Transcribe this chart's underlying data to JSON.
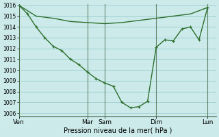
{
  "background_color": "#cceaea",
  "grid_color": "#99cccc",
  "line_color": "#2a6e2a",
  "xlabel": "Pression niveau de la mer( hPa )",
  "ylim": [
    1006,
    1016
  ],
  "yticks": [
    1006,
    1007,
    1008,
    1009,
    1010,
    1011,
    1012,
    1013,
    1014,
    1015,
    1016
  ],
  "day_labels": [
    "Ven",
    "Mar",
    "Sam",
    "Dim",
    "Lun"
  ],
  "day_positions_x": [
    0.0,
    8.0,
    10.0,
    16.0,
    22.0
  ],
  "xlim": [
    0,
    23
  ],
  "vlines": [
    0.0,
    8.0,
    10.0,
    16.0,
    22.0
  ],
  "smooth_x": [
    0,
    2,
    4,
    6,
    8,
    10,
    12,
    14,
    16,
    18,
    20,
    22
  ],
  "smooth_y": [
    1016.0,
    1015.0,
    1014.8,
    1014.5,
    1014.4,
    1014.3,
    1014.4,
    1014.6,
    1014.8,
    1015.0,
    1015.2,
    1015.8
  ],
  "detail_x": [
    0,
    1,
    2,
    3,
    4,
    5,
    6,
    7,
    8,
    9,
    10,
    11,
    12,
    13,
    14,
    15,
    16,
    17,
    18,
    19,
    20,
    21,
    22
  ],
  "detail_y": [
    1016.0,
    1015.2,
    1014.0,
    1013.0,
    1012.2,
    1011.8,
    1011.0,
    1010.5,
    1009.8,
    1009.2,
    1008.8,
    1008.5,
    1007.0,
    1006.5,
    1006.6,
    1007.1,
    1012.1,
    1012.8,
    1012.7,
    1013.8,
    1014.0,
    1012.8,
    1015.8
  ]
}
